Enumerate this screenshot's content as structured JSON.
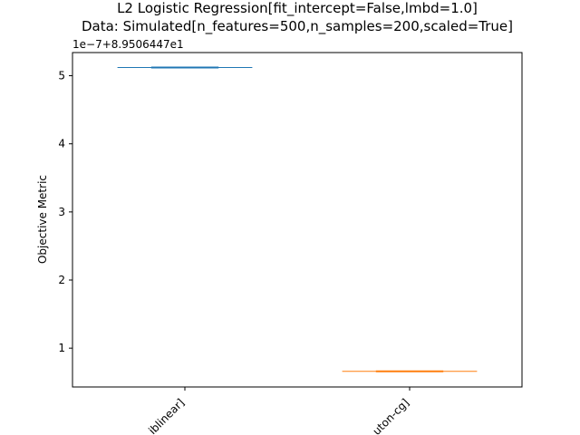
{
  "chart_data": {
    "type": "box",
    "title": "L2 Logistic Regression[fit_intercept=False,lmbd=1.0]",
    "subtitle": "Data: Simulated[n_features=500,n_samples=200,scaled=True]",
    "ylabel": "Objective Metric",
    "xlabel": "",
    "offset_label": "1e−7+8.9506447e1",
    "categories": [
      "sklearn[liblinear]",
      "sklearn[newton-cg]"
    ],
    "tick_labels": [
      "iblinear]",
      "uton-cg]"
    ],
    "yticks": [
      1,
      2,
      3,
      4,
      5
    ],
    "ytick_labels": [
      "1",
      "2",
      "3",
      "4",
      "5"
    ],
    "ylim": [
      0.43,
      5.34
    ],
    "grid": false,
    "series": [
      {
        "values": [
          5.12
        ],
        "color": "#1f77b4"
      },
      {
        "values": [
          0.66
        ],
        "color": "#ff7f0e"
      }
    ]
  }
}
